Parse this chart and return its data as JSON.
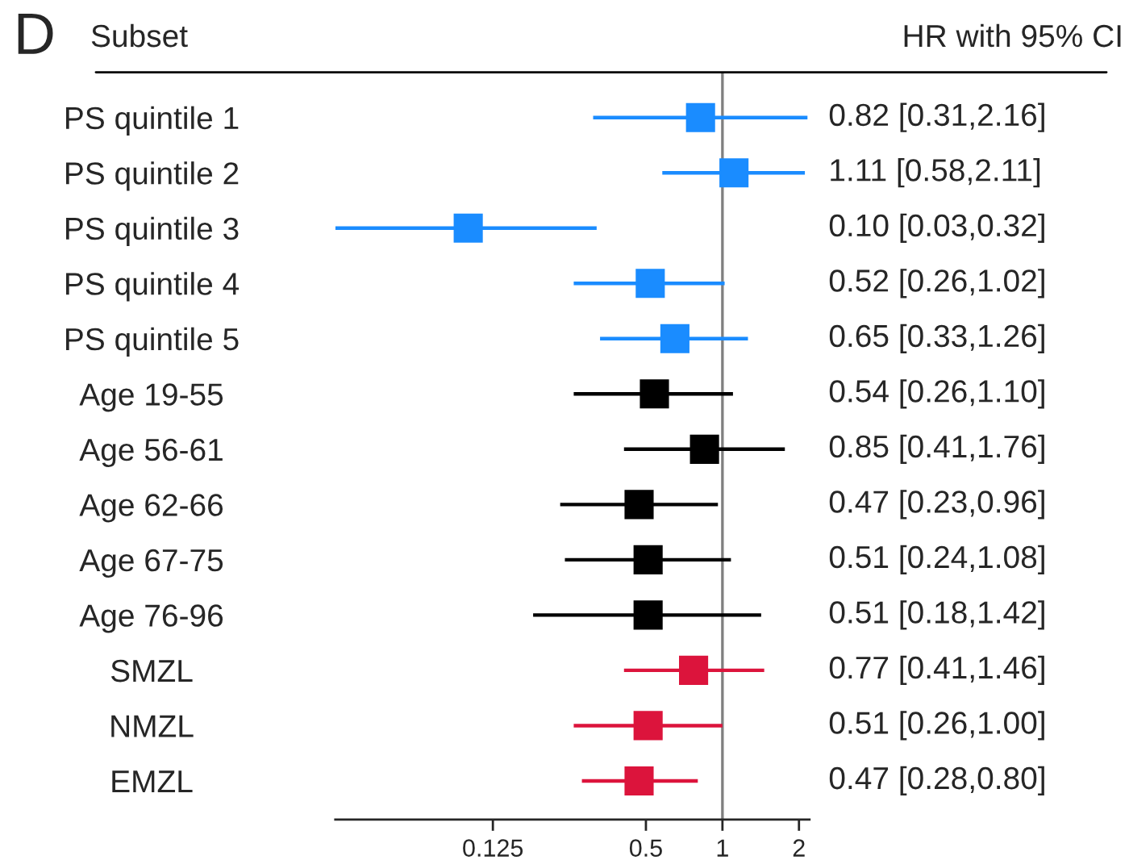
{
  "chart_data": {
    "type": "scatter",
    "orientation": "horizontal",
    "marker": "square",
    "log": "x",
    "grid": false,
    "categories": [
      "PS quintile 1",
      "PS quintile 2",
      "PS quintile 3",
      "PS quintile 4",
      "PS quintile 5",
      "Age 19-55",
      "Age 56-61",
      "Age 62-66",
      "Age 67-75",
      "Age 76-96",
      "SMZL",
      "NMZL",
      "EMZL"
    ],
    "values": [
      0.82,
      1.11,
      0.1,
      0.52,
      0.65,
      0.54,
      0.85,
      0.47,
      0.51,
      0.51,
      0.77,
      0.51,
      0.47
    ],
    "errors": [
      [
        0.31,
        2.16
      ],
      [
        0.58,
        2.11
      ],
      [
        0.03,
        0.32
      ],
      [
        0.26,
        1.02
      ],
      [
        0.33,
        1.26
      ],
      [
        0.26,
        1.1
      ],
      [
        0.41,
        1.76
      ],
      [
        0.23,
        0.96
      ],
      [
        0.24,
        1.08
      ],
      [
        0.18,
        1.42
      ],
      [
        0.41,
        1.46
      ],
      [
        0.26,
        1.0
      ],
      [
        0.28,
        0.8
      ]
    ],
    "colors": [
      "#1a8cff",
      "#1a8cff",
      "#1a8cff",
      "#1a8cff",
      "#1a8cff",
      "#000000",
      "#000000",
      "#000000",
      "#000000",
      "#000000",
      "#dc143c",
      "#dc143c",
      "#dc143c"
    ],
    "value_labels": [
      "0.82 [0.31,2.16]",
      "1.11 [0.58,2.11]",
      "0.10 [0.03,0.32]",
      "0.52 [0.26,1.02]",
      "0.65 [0.33,1.26]",
      "0.54 [0.26,1.10]",
      "0.85 [0.41,1.76]",
      "0.47 [0.23,0.96]",
      "0.51 [0.24,1.08]",
      "0.51 [0.18,1.42]",
      "0.77 [0.41,1.46]",
      "0.51 [0.26,1.00]",
      "0.47 [0.28,0.80]"
    ],
    "xlim": [
      0.03,
      2.2
    ],
    "xticks": [
      0.125,
      0.5,
      1,
      2
    ],
    "ref_lines": [
      {
        "axis": "x",
        "value": 1,
        "color": "#808080"
      }
    ],
    "annotations": [
      "D",
      "Subset",
      "HR with 95% CI"
    ]
  }
}
